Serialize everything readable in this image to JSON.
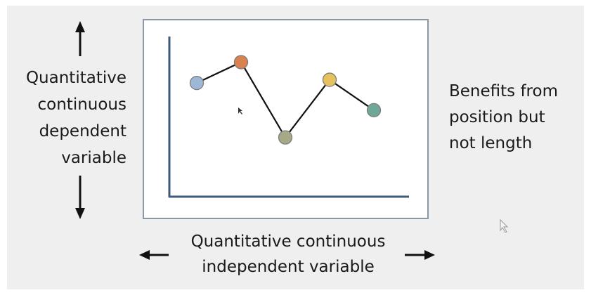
{
  "y_axis_label": "Quantitative\ncontinuous\ndependent\nvariable",
  "x_axis_label": "Quantitative continuous\nindependent variable",
  "side_note": "Benefits from\nposition but\nnot length",
  "colors": {
    "background": "#efefef",
    "frame": "#8a97a4",
    "axis": "#3d5a78",
    "line": "#111111",
    "arrow": "#111111"
  },
  "points": [
    {
      "name": "point-1",
      "level": 0.71,
      "color": "#9db8d6"
    },
    {
      "name": "point-2",
      "level": 0.84,
      "color": "#d9824f"
    },
    {
      "name": "point-3",
      "level": 0.37,
      "color": "#a6a886"
    },
    {
      "name": "point-4",
      "level": 0.73,
      "color": "#e6c25f"
    },
    {
      "name": "point-5",
      "level": 0.54,
      "color": "#6fa898"
    }
  ]
}
